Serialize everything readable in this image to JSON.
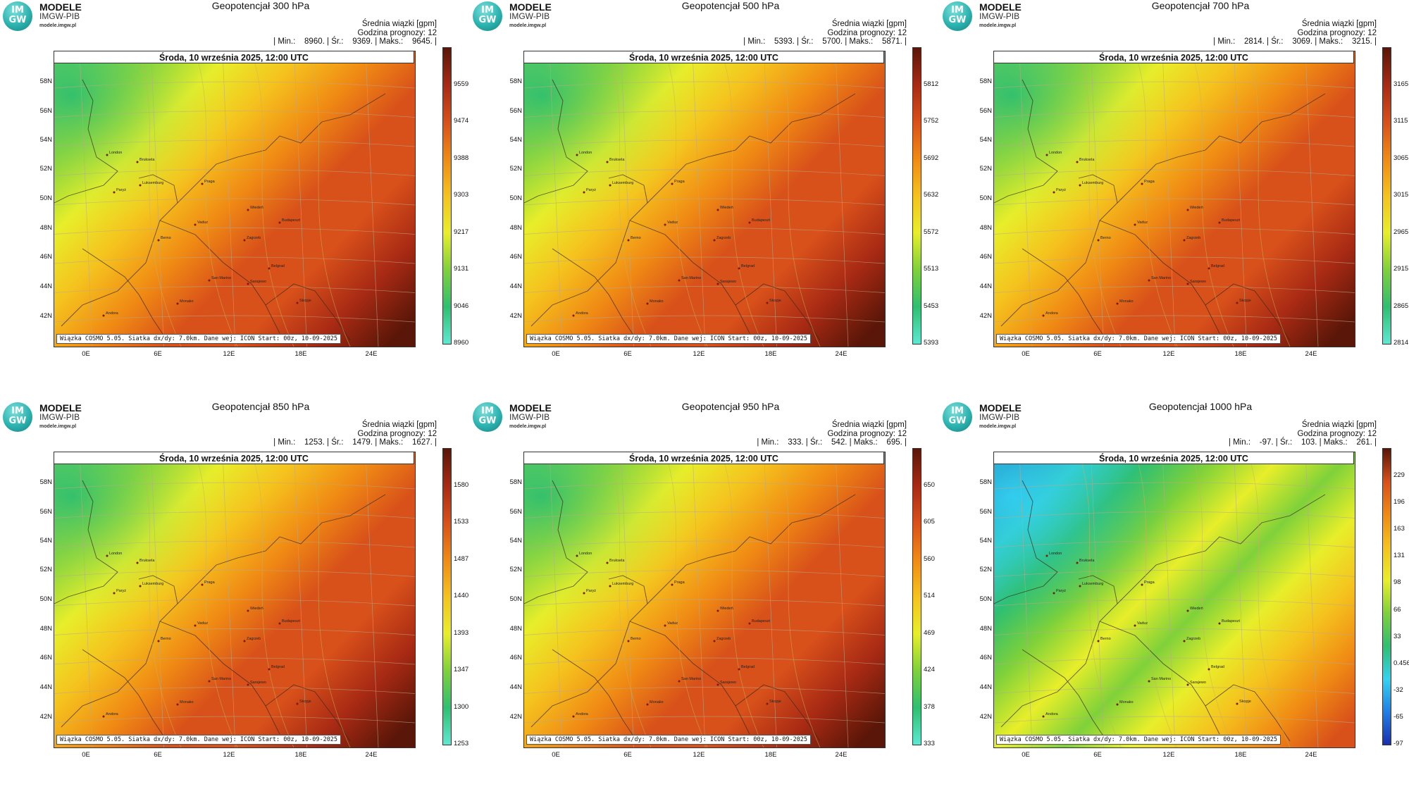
{
  "common": {
    "brand_name": "MODELE",
    "brand_org": "IMGW-PIB",
    "brand_url": "modele.imgw.pl",
    "logo_text_top": "IM",
    "logo_text_bottom": "GW",
    "info_line1": "Średnia wiązki [gpm]",
    "info_line2": "Godzina prognozy: 12",
    "map_header": "Środa, 10 września 2025, 12:00 UTC",
    "map_footer": "Wiązka COSMO 5.05. Siatka dx/dy: 7.0km. Dane wej: ICON Start: 00z, 10-09-2025",
    "lat_labels": [
      "58N",
      "56N",
      "54N",
      "52N",
      "50N",
      "48N",
      "46N",
      "44N",
      "42N"
    ],
    "lon_labels": [
      "0E",
      "6E",
      "12E",
      "18E",
      "24E"
    ]
  },
  "panels": [
    {
      "title": "Geopotencjał 300 hPa",
      "stats": "| Min.:    8960. | Śr.:    9369. | Maks.:    9645. |",
      "colorbar_ticks": [
        "9559",
        "9474",
        "9388",
        "9303",
        "9217",
        "9131",
        "9046",
        "8960"
      ],
      "colorscale": "warm"
    },
    {
      "title": "Geopotencjał 500 hPa",
      "stats": "| Min.:    5393. | Śr.:    5700. | Maks.:    5871. |",
      "colorbar_ticks": [
        "5812",
        "5752",
        "5692",
        "5632",
        "5572",
        "5513",
        "5453",
        "5393"
      ],
      "colorscale": "warm"
    },
    {
      "title": "Geopotencjał 700 hPa",
      "stats": "| Min.:    2814. | Śr.:    3069. | Maks.:    3215. |",
      "colorbar_ticks": [
        "3165",
        "3115",
        "3065",
        "3015",
        "2965",
        "2915",
        "2865",
        "2814"
      ],
      "colorscale": "warm"
    },
    {
      "title": "Geopotencjał 850 hPa",
      "stats": "| Min.:    1253. | Śr.:    1479. | Maks.:    1627. |",
      "colorbar_ticks": [
        "1580",
        "1533",
        "1487",
        "1440",
        "1393",
        "1347",
        "1300",
        "1253"
      ],
      "colorscale": "warm"
    },
    {
      "title": "Geopotencjał 950 hPa",
      "stats": "| Min.:    333. | Śr.:    542. | Maks.:    695. |",
      "colorbar_ticks": [
        "650",
        "605",
        "560",
        "514",
        "469",
        "424",
        "378",
        "333"
      ],
      "colorscale": "warm"
    },
    {
      "title": "Geopotencjał 1000 hPa",
      "stats": "| Min.:    -97. | Śr.:    103. | Maks.:    261. |",
      "colorbar_ticks": [
        "229",
        "196",
        "163",
        "131",
        "98",
        "66",
        "33",
        "0.456",
        "-32",
        "-65",
        "-97"
      ],
      "colorscale": "full"
    }
  ],
  "cities": [
    "London",
    "Bruksela",
    "Paryż",
    "Luksemburg",
    "Praga",
    "Wiedeń",
    "Budapeszt",
    "Zagrzeb",
    "Belgrad",
    "Sarajewo",
    "San Marino",
    "Berno",
    "Vaduz",
    "Monako",
    "Andora",
    "Rzym",
    "Skopje"
  ],
  "colors": {
    "warm_stops": [
      "#5ee8d2",
      "#2fbf70",
      "#7fd13a",
      "#e8ee2a",
      "#f5c21e",
      "#f08a14",
      "#d8501a",
      "#a82a14",
      "#5a1608"
    ],
    "full_stops": [
      "#1a2fb0",
      "#1f7fe8",
      "#34d2f0",
      "#2fbf70",
      "#7fd13a",
      "#e8ee2a",
      "#f5c21e",
      "#f08a14",
      "#d8501a",
      "#5a1608"
    ]
  }
}
